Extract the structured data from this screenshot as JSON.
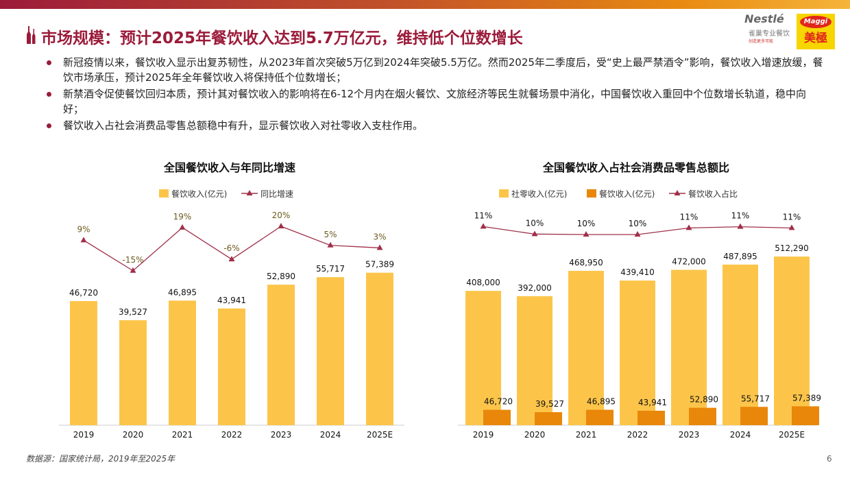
{
  "header": {
    "title": "市场规模：预计2025年餐饮收入达到5.7万亿元，维持低个位数增长",
    "logo_text": "Nestle 雀巢专业餐饮 创造更多可能 Maggi 美極"
  },
  "bullets": [
    "新冠疫情以来，餐饮收入显示出复苏韧性，从2023年首次突破5万亿到2024年突破5.5万亿。然而2025年二季度后，受“史上最严禁酒令”影响，餐饮收入增速放缓，餐饮市场承压，预计2025年全年餐饮收入将保持低个位数增长；",
    "新禁酒令促使餐饮回归本质，预计其对餐饮收入的影响将在6-12个月内在烟火餐饮、文旅经济等民生就餐场景中消化，中国餐饮收入重回中个位数增长轨道，稳中向好；",
    "餐饮收入占社会消费品零售总额稳中有升，显示餐饮收入对社零收入支柱作用。"
  ],
  "footer": {
    "source": "数据源：国家统计局，2019年至2025年",
    "page": "6"
  },
  "colors": {
    "brand": "#9b1b3a",
    "yellow": "#fcc54a",
    "orange": "#e8870a",
    "line": "#a0304a"
  },
  "chart_data": [
    {
      "type": "bar+line",
      "title": "全国餐饮收入与年同比增速",
      "categories": [
        "2019",
        "2020",
        "2021",
        "2022",
        "2023",
        "2024",
        "2025E"
      ],
      "series": [
        {
          "name": "餐饮收入(亿元)",
          "type": "bar",
          "values": [
            46720,
            39527,
            46895,
            43941,
            52890,
            55717,
            57389
          ],
          "labels": [
            "46,720",
            "39,527",
            "46,895",
            "43,941",
            "52,890",
            "55,717",
            "57,389"
          ]
        },
        {
          "name": "同比增速",
          "type": "line",
          "values": [
            9,
            -15,
            19,
            -6,
            20,
            5,
            3
          ],
          "labels": [
            "9%",
            "-15%",
            "19%",
            "-6%",
            "20%",
            "5%",
            "3%"
          ]
        }
      ],
      "legend": "top",
      "grid": false
    },
    {
      "type": "bar+line",
      "title": "全国餐饮收入占社会消费品零售总额比",
      "categories": [
        "2019",
        "2020",
        "2021",
        "2022",
        "2023",
        "2024",
        "2025E"
      ],
      "series": [
        {
          "name": "社零收入(亿元)",
          "type": "bar",
          "values": [
            408000,
            392000,
            468950,
            439410,
            472000,
            487895,
            512290
          ],
          "labels": [
            "408,000",
            "392,000",
            "468,950",
            "439,410",
            "472,000",
            "487,895",
            "512,290"
          ]
        },
        {
          "name": "餐饮收入(亿元)",
          "type": "bar",
          "values": [
            46720,
            39527,
            46895,
            43941,
            52890,
            55717,
            57389
          ],
          "labels": [
            "46,720",
            "39,527",
            "46,895",
            "43,941",
            "52,890",
            "55,717",
            "57,389"
          ]
        },
        {
          "name": "餐饮收入占比",
          "type": "line",
          "values": [
            11,
            10,
            10,
            10,
            11,
            11,
            11
          ],
          "labels": [
            "11%",
            "10%",
            "10%",
            "10%",
            "11%",
            "11%",
            "11%"
          ]
        }
      ],
      "legend": "top",
      "grid": false
    }
  ]
}
